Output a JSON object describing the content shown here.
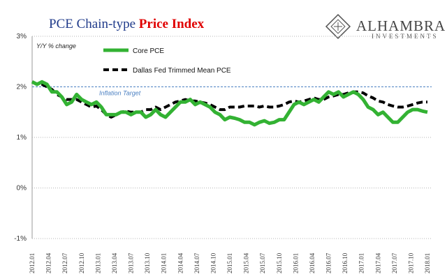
{
  "title": {
    "part1": "PCE Chain-type ",
    "part2": "Price Index"
  },
  "logo": {
    "name": "ALHAMBRA",
    "sub": "INVESTMENTS"
  },
  "chart_data": {
    "type": "line",
    "ylabel": "Y/Y % change",
    "ylim": [
      -1,
      3
    ],
    "yticks": [
      "-1%",
      "0%",
      "1%",
      "2%",
      "3%"
    ],
    "ytick_values": [
      -1,
      0,
      1,
      2,
      3
    ],
    "grid": "horizontal dotted",
    "legend_position": "top-left",
    "x_labels": [
      "2012.01",
      "2012.04",
      "2012.07",
      "2012.10",
      "2013.01",
      "2013.04",
      "2013.07",
      "2013.10",
      "2014.01",
      "2014.04",
      "2014.07",
      "2014.10",
      "2015.01",
      "2015.04",
      "2015.07",
      "2015.10",
      "2016.01",
      "2016.04",
      "2016.07",
      "2016.10",
      "2017.01",
      "2017.04",
      "2017.07",
      "2017.10",
      "2018.01"
    ],
    "reference_line": {
      "label": "Inflation Target",
      "value": 2.0,
      "color": "#4a7fc1"
    },
    "series": [
      {
        "name": "Core PCE",
        "color": "#33b233",
        "style": "solid",
        "values": [
          2.1,
          2.05,
          2.1,
          2.05,
          1.9,
          1.9,
          1.8,
          1.65,
          1.7,
          1.85,
          1.75,
          1.7,
          1.65,
          1.7,
          1.6,
          1.45,
          1.45,
          1.45,
          1.5,
          1.5,
          1.45,
          1.5,
          1.5,
          1.4,
          1.45,
          1.55,
          1.45,
          1.4,
          1.5,
          1.6,
          1.7,
          1.7,
          1.75,
          1.65,
          1.7,
          1.65,
          1.6,
          1.5,
          1.45,
          1.35,
          1.4,
          1.38,
          1.35,
          1.3,
          1.3,
          1.25,
          1.3,
          1.33,
          1.28,
          1.3,
          1.35,
          1.35,
          1.5,
          1.65,
          1.7,
          1.65,
          1.7,
          1.75,
          1.7,
          1.8,
          1.9,
          1.85,
          1.9,
          1.8,
          1.85,
          1.9,
          1.85,
          1.75,
          1.6,
          1.55,
          1.45,
          1.5,
          1.4,
          1.3,
          1.3,
          1.4,
          1.5,
          1.55,
          1.55,
          1.52,
          1.5
        ]
      },
      {
        "name": "Dallas Fed Trimmed Mean PCE",
        "color": "#000000",
        "style": "dashed",
        "values": [
          2.1,
          2.05,
          2.05,
          2.0,
          1.95,
          1.85,
          1.8,
          1.75,
          1.75,
          1.75,
          1.7,
          1.65,
          1.6,
          1.62,
          1.55,
          1.45,
          1.4,
          1.45,
          1.5,
          1.52,
          1.5,
          1.5,
          1.5,
          1.55,
          1.55,
          1.6,
          1.55,
          1.6,
          1.65,
          1.7,
          1.72,
          1.75,
          1.72,
          1.72,
          1.7,
          1.68,
          1.65,
          1.6,
          1.55,
          1.55,
          1.6,
          1.6,
          1.6,
          1.62,
          1.62,
          1.62,
          1.6,
          1.62,
          1.6,
          1.6,
          1.62,
          1.65,
          1.7,
          1.72,
          1.7,
          1.72,
          1.75,
          1.78,
          1.75,
          1.75,
          1.8,
          1.82,
          1.85,
          1.85,
          1.88,
          1.9,
          1.9,
          1.88,
          1.82,
          1.78,
          1.72,
          1.7,
          1.65,
          1.62,
          1.6,
          1.6,
          1.62,
          1.65,
          1.68,
          1.7,
          1.7
        ]
      }
    ]
  }
}
